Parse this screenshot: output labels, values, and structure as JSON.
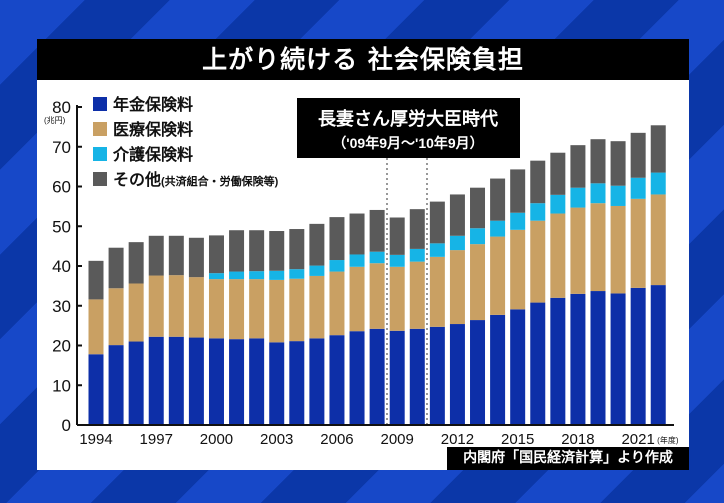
{
  "title": "上がり続ける 社会保険負担",
  "source": "内閣府「国民経済計算」より作成",
  "annotation": {
    "title": "長妻さん厚労大臣時代",
    "period": "（'09年9月～'10年9月）"
  },
  "chart_data": {
    "type": "bar",
    "stacked": true,
    "ylabel": "(兆円)",
    "xlabel": "(年度)",
    "ylim": [
      0,
      80
    ],
    "yticks": [
      0,
      10,
      20,
      30,
      40,
      50,
      60,
      70,
      80
    ],
    "xtick_labels": [
      "1994",
      "1997",
      "2000",
      "2003",
      "2006",
      "2009",
      "2012",
      "2015",
      "2018",
      "2021"
    ],
    "legend_position": "top-left",
    "categories": [
      1994,
      1995,
      1996,
      1997,
      1998,
      1999,
      2000,
      2001,
      2002,
      2003,
      2004,
      2005,
      2006,
      2007,
      2008,
      2009,
      2010,
      2011,
      2012,
      2013,
      2014,
      2015,
      2016,
      2017,
      2018,
      2019,
      2020,
      2021,
      2022
    ],
    "series": [
      {
        "name": "年金保険料",
        "color": "#0d2fa8",
        "values": [
          17.8,
          20.1,
          21.0,
          22.2,
          22.2,
          22.0,
          21.8,
          21.6,
          21.8,
          20.8,
          21.1,
          21.8,
          22.6,
          23.6,
          24.2,
          23.7,
          24.2,
          24.7,
          25.4,
          26.4,
          27.7,
          29.1,
          30.8,
          32.0,
          33.0,
          33.7,
          33.1,
          34.5,
          35.2
        ]
      },
      {
        "name": "医療保険料",
        "color": "#c9a063",
        "values": [
          13.8,
          14.3,
          14.6,
          15.4,
          15.5,
          15.2,
          14.9,
          15.1,
          14.9,
          15.7,
          15.7,
          15.7,
          16.0,
          16.2,
          16.5,
          16.1,
          16.9,
          17.6,
          18.6,
          19.1,
          19.7,
          20.0,
          20.6,
          21.2,
          21.7,
          22.1,
          22.0,
          22.4,
          22.8
        ]
      },
      {
        "name": "介護保険料",
        "color": "#16b4e6",
        "values": [
          0,
          0,
          0,
          0,
          0,
          0,
          1.5,
          1.9,
          2.0,
          2.3,
          2.4,
          2.6,
          2.9,
          3.1,
          2.9,
          3.0,
          3.2,
          3.4,
          3.6,
          4.0,
          4.0,
          4.3,
          4.4,
          4.7,
          5.0,
          5.0,
          5.1,
          5.3,
          5.5
        ]
      },
      {
        "name": "その他",
        "name_note": "(共済組合・労働保険等)",
        "color": "#5a5a5a",
        "values": [
          9.7,
          10.2,
          10.4,
          10.0,
          9.9,
          9.9,
          9.5,
          10.4,
          10.3,
          10.0,
          10.1,
          10.5,
          10.8,
          10.3,
          10.5,
          9.4,
          10.0,
          10.5,
          10.4,
          10.2,
          10.6,
          10.9,
          10.7,
          10.6,
          10.7,
          11.1,
          11.2,
          11.3,
          11.9
        ]
      }
    ],
    "highlight_period": [
      "2009-09",
      "2010-09"
    ]
  }
}
